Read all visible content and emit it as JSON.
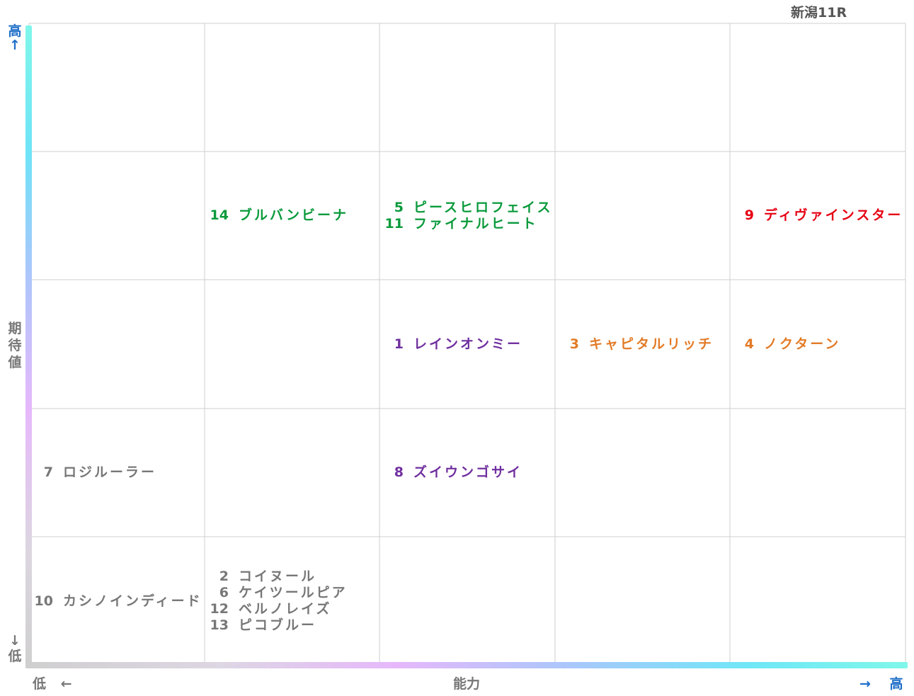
{
  "race_title": "新潟11R",
  "axes": {
    "y_title": "期待値",
    "y_high": "高",
    "y_low": "低",
    "y_up_arrow": "↑",
    "y_down_arrow": "↓",
    "x_title": "能力",
    "x_low": "低",
    "x_high": "高",
    "x_left_arrow": "←",
    "x_right_arrow": "→"
  },
  "colors": {
    "green": "#0a9a3c",
    "red": "#e60012",
    "orange": "#e27b27",
    "purple": "#7030a0",
    "gray": "#777777",
    "blue_label": "#1e6ec8"
  },
  "chart_data": {
    "type": "table",
    "columns": 5,
    "rows": 5,
    "cells": [
      {
        "row": 1,
        "col": 1,
        "color": "green",
        "entries": [
          {
            "num": "14",
            "name": "ブルバンビーナ"
          }
        ]
      },
      {
        "row": 1,
        "col": 2,
        "color": "green",
        "entries": [
          {
            "num": "5",
            "name": "ピースヒロフェイス"
          },
          {
            "num": "11",
            "name": "ファイナルヒート"
          }
        ]
      },
      {
        "row": 1,
        "col": 4,
        "color": "red",
        "entries": [
          {
            "num": "9",
            "name": "ディヴァインスター"
          }
        ]
      },
      {
        "row": 2,
        "col": 2,
        "color": "purple",
        "entries": [
          {
            "num": "1",
            "name": "レインオンミー"
          }
        ]
      },
      {
        "row": 2,
        "col": 3,
        "color": "orange",
        "entries": [
          {
            "num": "3",
            "name": "キャピタルリッチ"
          }
        ]
      },
      {
        "row": 2,
        "col": 4,
        "color": "orange",
        "entries": [
          {
            "num": "4",
            "name": "ノクターン"
          }
        ]
      },
      {
        "row": 3,
        "col": 0,
        "color": "gray",
        "entries": [
          {
            "num": "7",
            "name": "ロジルーラー"
          }
        ]
      },
      {
        "row": 3,
        "col": 2,
        "color": "purple",
        "entries": [
          {
            "num": "8",
            "name": "ズイウンゴサイ"
          }
        ]
      },
      {
        "row": 4,
        "col": 0,
        "color": "gray",
        "entries": [
          {
            "num": "10",
            "name": "カシノインディード"
          }
        ]
      },
      {
        "row": 4,
        "col": 1,
        "color": "gray",
        "entries": [
          {
            "num": "2",
            "name": "コイヌール"
          },
          {
            "num": "6",
            "name": "ケイツールピア"
          },
          {
            "num": "12",
            "name": "ベルノレイズ"
          },
          {
            "num": "13",
            "name": "ピコブルー"
          }
        ]
      }
    ]
  }
}
